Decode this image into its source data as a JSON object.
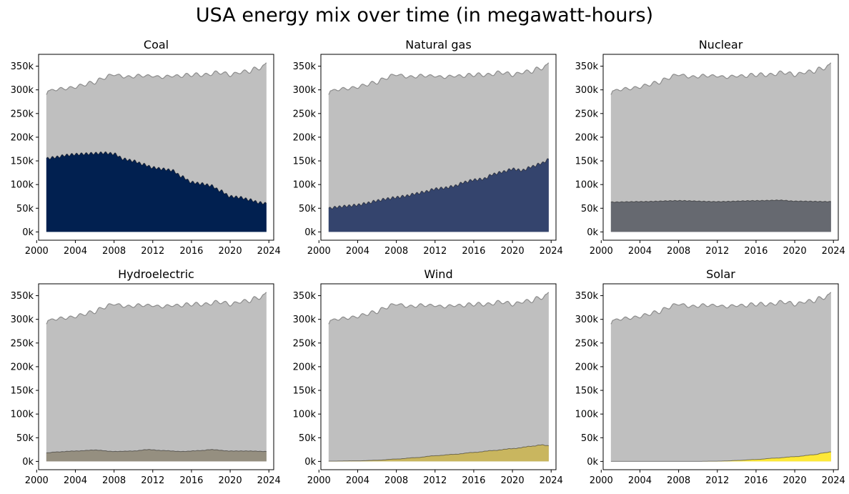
{
  "suptitle": "USA energy mix over time (in megawatt-hours)",
  "colors": {
    "total_fill": "#bfbfbf",
    "total_edge": "#8c8c8c"
  },
  "chart_data": {
    "type": "area",
    "xlim": [
      2000.2,
      2024.5
    ],
    "ylim": [
      -17500,
      375000
    ],
    "xticks": [
      2000,
      2004,
      2008,
      2012,
      2016,
      2020,
      2024
    ],
    "xtick_labels": [
      "2000",
      "2004",
      "2008",
      "2012",
      "2016",
      "2020",
      "2024"
    ],
    "yticks": [
      0,
      50000,
      100000,
      150000,
      200000,
      250000,
      300000,
      350000
    ],
    "ytick_labels": [
      "0k",
      "50k",
      "100k",
      "150k",
      "200k",
      "250k",
      "300k",
      "350k"
    ],
    "x_start": 2001.0,
    "x_end": 2023.75,
    "total": {
      "x": [
        2001.0,
        2001.2,
        2001.6,
        2002.0,
        2002.5,
        2003.0,
        2003.5,
        2004.0,
        2004.5,
        2005.0,
        2005.5,
        2006.0,
        2006.5,
        2007.0,
        2007.5,
        2008.0,
        2008.5,
        2009.0,
        2009.5,
        2010.0,
        2010.5,
        2011.0,
        2011.5,
        2012.0,
        2012.5,
        2013.0,
        2013.5,
        2014.0,
        2014.5,
        2015.0,
        2015.5,
        2016.0,
        2016.5,
        2017.0,
        2017.5,
        2018.0,
        2018.5,
        2019.0,
        2019.5,
        2020.0,
        2020.5,
        2021.0,
        2021.5,
        2022.0,
        2022.5,
        2023.0,
        2023.5,
        2023.75
      ],
      "values": [
        290000,
        298000,
        301000,
        298000,
        305000,
        300000,
        307000,
        303000,
        312000,
        308000,
        318000,
        312000,
        325000,
        322000,
        333000,
        330000,
        333000,
        325000,
        330000,
        325000,
        333000,
        327000,
        332000,
        327000,
        330000,
        324000,
        331000,
        327000,
        332000,
        326000,
        335000,
        328000,
        336000,
        328000,
        335000,
        330000,
        340000,
        333000,
        338000,
        328000,
        337000,
        334000,
        342000,
        335000,
        348000,
        342000,
        353000,
        357000
      ]
    },
    "panels": [
      {
        "title": "Coal",
        "color": "#012050",
        "x": [
          2001.0,
          2002.0,
          2003.0,
          2004.0,
          2005.0,
          2006.0,
          2007.0,
          2008.0,
          2009.0,
          2010.0,
          2011.0,
          2012.0,
          2013.0,
          2014.0,
          2015.0,
          2016.0,
          2017.0,
          2018.0,
          2019.0,
          2020.0,
          2021.0,
          2022.0,
          2023.0,
          2023.75
        ],
        "values": [
          155000,
          158000,
          162000,
          164000,
          165000,
          166000,
          167000,
          165000,
          154000,
          150000,
          143000,
          136000,
          133000,
          130000,
          117000,
          105000,
          102000,
          98000,
          87000,
          75000,
          73000,
          68000,
          62000,
          60000
        ]
      },
      {
        "title": "Natural gas",
        "color": "#34446d",
        "x": [
          2001.0,
          2002.0,
          2003.0,
          2004.0,
          2005.0,
          2006.0,
          2007.0,
          2008.0,
          2009.0,
          2010.0,
          2011.0,
          2012.0,
          2013.0,
          2014.0,
          2015.0,
          2016.0,
          2017.0,
          2018.0,
          2019.0,
          2020.0,
          2021.0,
          2022.0,
          2023.0,
          2023.75
        ],
        "values": [
          50000,
          53000,
          55000,
          57000,
          61000,
          66000,
          70000,
          73000,
          76000,
          81000,
          85000,
          91000,
          93000,
          97000,
          105000,
          110000,
          112000,
          122000,
          127000,
          133000,
          130000,
          138000,
          145000,
          153000
        ]
      },
      {
        "title": "Nuclear",
        "color": "#666970",
        "x": [
          2001.0,
          2004.0,
          2008.0,
          2012.0,
          2016.0,
          2018.5,
          2020.0,
          2023.75
        ],
        "values": [
          63000,
          64000,
          66000,
          64000,
          66000,
          67000,
          65000,
          64000
        ]
      },
      {
        "title": "Hydroelectric",
        "color": "#958f80",
        "x": [
          2001.0,
          2002.0,
          2004.0,
          2006.0,
          2008.0,
          2010.0,
          2011.5,
          2013.0,
          2015.0,
          2017.0,
          2018.0,
          2020.0,
          2022.0,
          2023.75
        ],
        "values": [
          18000,
          20000,
          22000,
          24000,
          21000,
          22000,
          25000,
          23000,
          21000,
          23000,
          25000,
          22000,
          22000,
          21000
        ]
      },
      {
        "title": "Wind",
        "color": "#c9b65f",
        "x": [
          2001.0,
          2004.0,
          2006.0,
          2008.0,
          2010.0,
          2012.0,
          2014.0,
          2016.0,
          2018.0,
          2020.0,
          2022.0,
          2023.0,
          2023.75
        ],
        "values": [
          600,
          1200,
          2500,
          5000,
          8000,
          12000,
          15000,
          19000,
          23000,
          27000,
          32000,
          35000,
          33000
        ]
      },
      {
        "title": "Solar",
        "color": "#fde838",
        "x": [
          2001.0,
          2010.0,
          2012.0,
          2013.0,
          2014.0,
          2016.0,
          2018.0,
          2020.0,
          2022.0,
          2023.0,
          2023.75
        ],
        "values": [
          0,
          100,
          500,
          1000,
          2000,
          4000,
          7000,
          10000,
          14000,
          18000,
          20000
        ]
      }
    ]
  }
}
